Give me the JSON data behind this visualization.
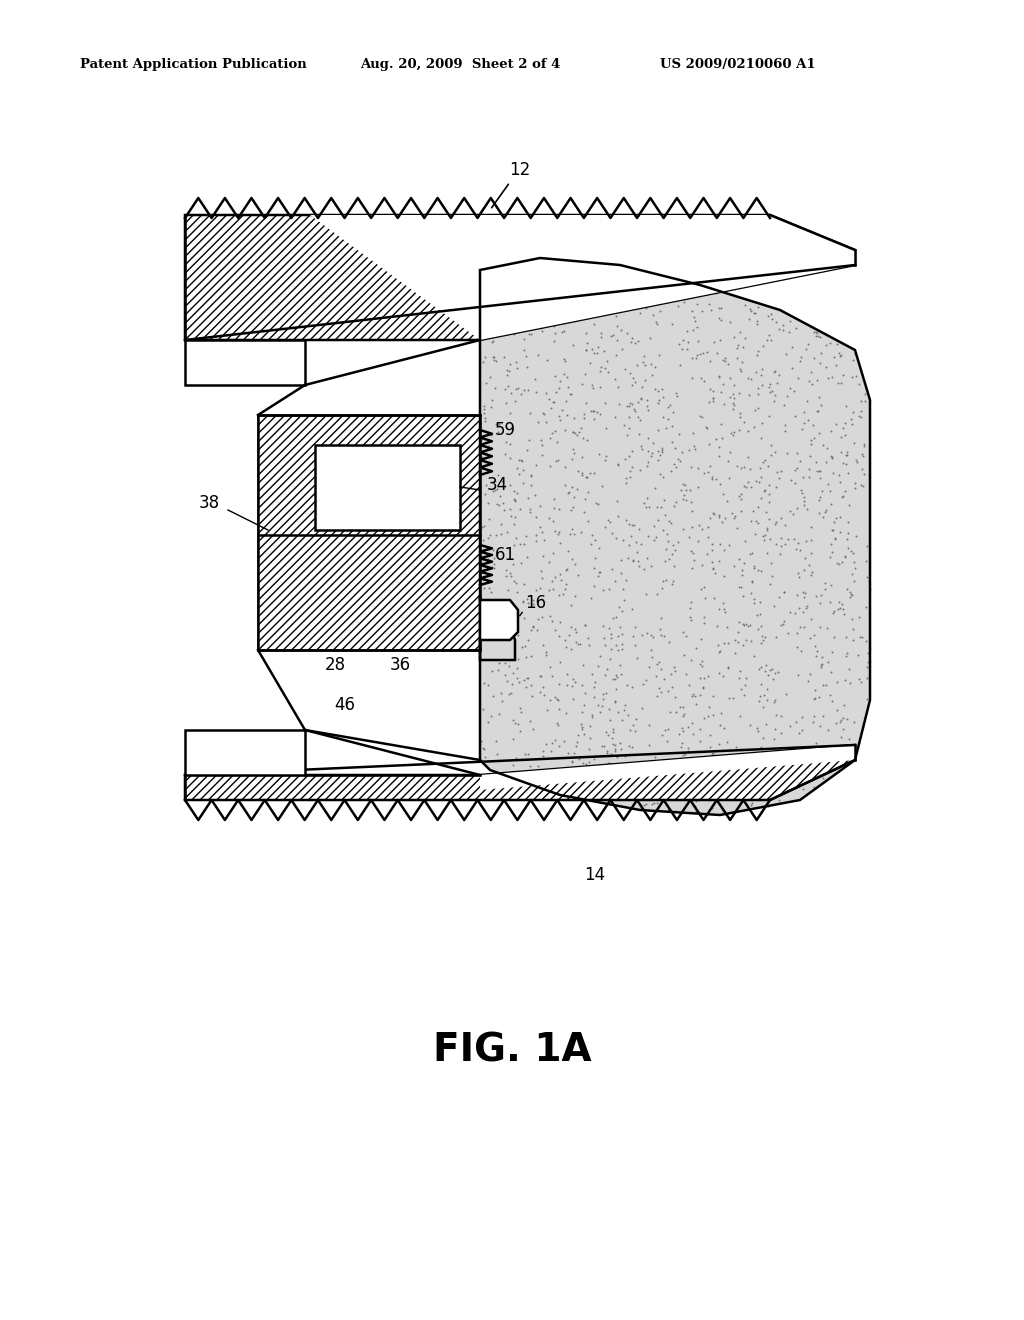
{
  "bg_color": "#ffffff",
  "line_color": "#000000",
  "header_text": "Patent Application Publication",
  "header_date": "Aug. 20, 2009  Sheet 2 of 4",
  "header_patent": "US 2009/0210060 A1",
  "fig_label": "FIG. 1A",
  "lw": 1.8,
  "stipple_color": "#aaaaaa",
  "hatch_density": "////",
  "n_stipple": 2000,
  "stipple_size": 2.0
}
